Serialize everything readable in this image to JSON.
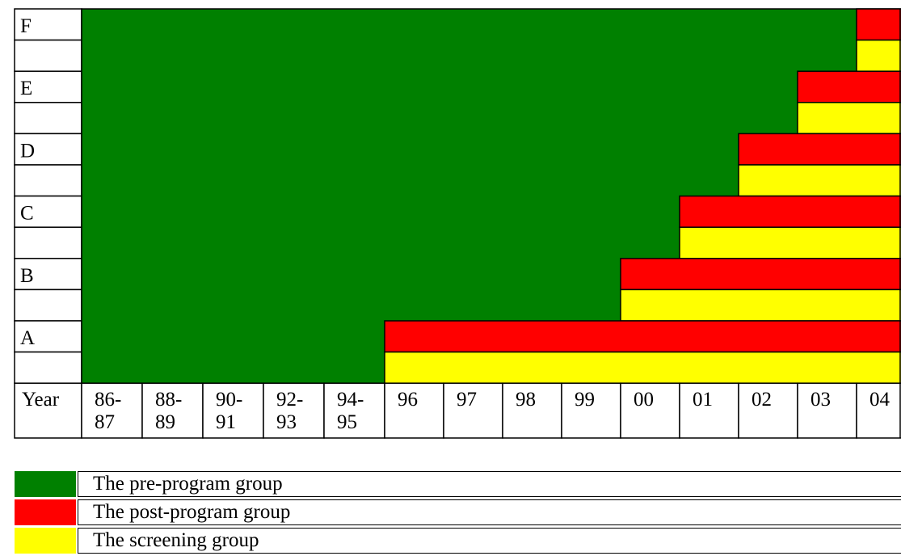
{
  "chart_data": {
    "type": "gantt-grid",
    "groups": [
      "F",
      "E",
      "D",
      "C",
      "B",
      "A"
    ],
    "year_header": "Year",
    "columns": [
      [
        "86-",
        "87"
      ],
      [
        "88-",
        "89"
      ],
      [
        "90-",
        "91"
      ],
      [
        "92-",
        "93"
      ],
      [
        "94-",
        "95"
      ],
      [
        "96"
      ],
      [
        "97"
      ],
      [
        "98"
      ],
      [
        "99"
      ],
      [
        "00"
      ],
      [
        "01"
      ],
      [
        "02"
      ],
      [
        "03"
      ],
      [
        "04"
      ]
    ],
    "program_start_column": {
      "F": "04",
      "E": "03",
      "D": "02",
      "C": "01",
      "B": "00",
      "A": "96"
    },
    "colors": {
      "pre": "#008000",
      "post": "#ff0000",
      "screening": "#ffff00"
    }
  },
  "legend": [
    {
      "key": "pre",
      "label": "The pre-program group"
    },
    {
      "key": "post",
      "label": "The post-program group"
    },
    {
      "key": "screening",
      "label": "The screening group"
    }
  ]
}
